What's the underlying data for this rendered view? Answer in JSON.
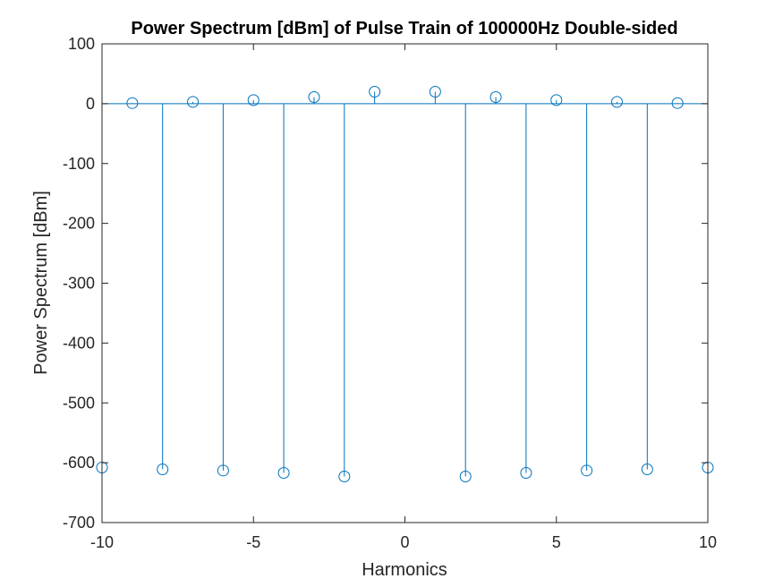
{
  "chart_data": {
    "type": "stem",
    "title": "Power Spectrum [dBm] of Pulse Train of 100000Hz Double-sided",
    "xlabel": "Harmonics",
    "ylabel": "Power Spectrum [dBm]",
    "xlim": [
      -10,
      10
    ],
    "ylim": [
      -700,
      100
    ],
    "xticks": [
      -10,
      -5,
      0,
      5,
      10
    ],
    "xtick_labels": [
      "-10",
      "-5",
      "0",
      "5",
      "10"
    ],
    "yticks": [
      -700,
      -600,
      -500,
      -400,
      -300,
      -200,
      -100,
      0,
      100
    ],
    "ytick_labels": [
      "-700",
      "-600",
      "-500",
      "-400",
      "-300",
      "-200",
      "-100",
      "0",
      "100"
    ],
    "grid": false,
    "box": true,
    "baseline": 0,
    "color": "#0072BD",
    "marker": "circle",
    "series": [
      {
        "x": [
          -10,
          -9,
          -8,
          -7,
          -6,
          -5,
          -4,
          -3,
          -2,
          -1,
          1,
          2,
          3,
          4,
          5,
          6,
          7,
          8,
          9,
          10
        ],
        "y": [
          -608,
          1,
          -611,
          3,
          -613,
          6,
          -617,
          11,
          -623,
          20,
          20,
          -623,
          11,
          -617,
          6,
          -613,
          3,
          -611,
          1,
          -608
        ]
      }
    ]
  }
}
